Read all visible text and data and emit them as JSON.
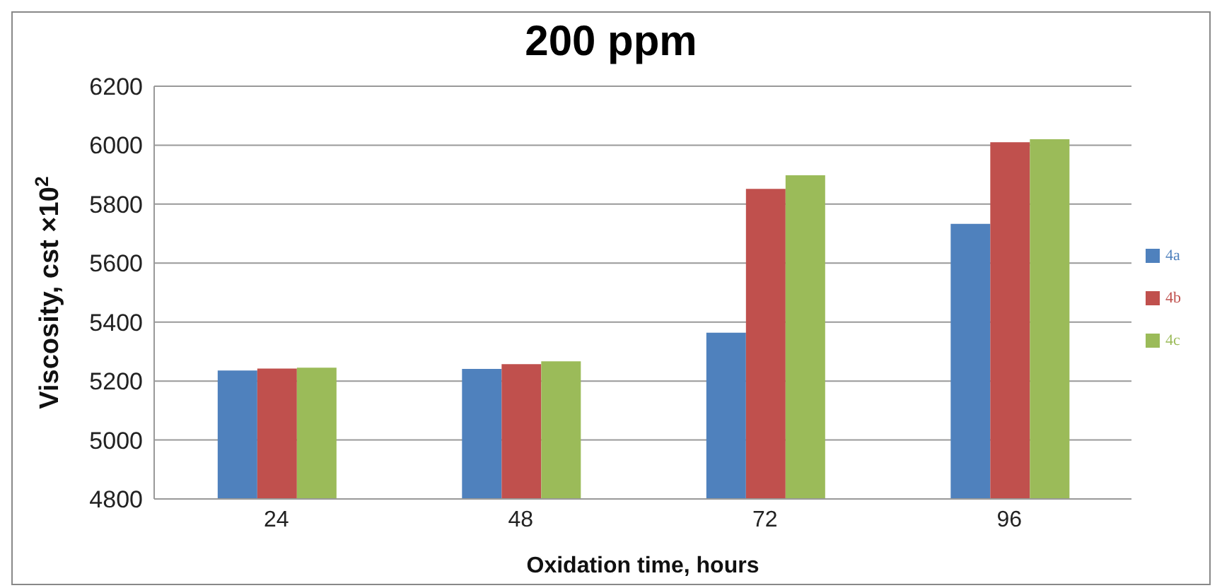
{
  "chart_data": {
    "type": "bar",
    "title": "200 ppm",
    "xlabel": "Oxidation time, hours",
    "ylabel": "Viscosity, cst ×10$^{2}$",
    "categories": [
      "24",
      "48",
      "72",
      "96"
    ],
    "series": [
      {
        "name": "4a",
        "color": "#4f81bd",
        "values": [
          5236,
          5241,
          5364,
          5733
        ]
      },
      {
        "name": "4b",
        "color": "#c0504d",
        "values": [
          5242,
          5257,
          5852,
          6010
        ]
      },
      {
        "name": "4c",
        "color": "#9bbb59",
        "values": [
          5245,
          5267,
          5898,
          6020
        ]
      }
    ],
    "ylim": [
      4800,
      6200
    ],
    "yticks": [
      4800,
      5000,
      5200,
      5400,
      5600,
      5800,
      6000,
      6200
    ],
    "grid": "y",
    "legend": "right"
  }
}
